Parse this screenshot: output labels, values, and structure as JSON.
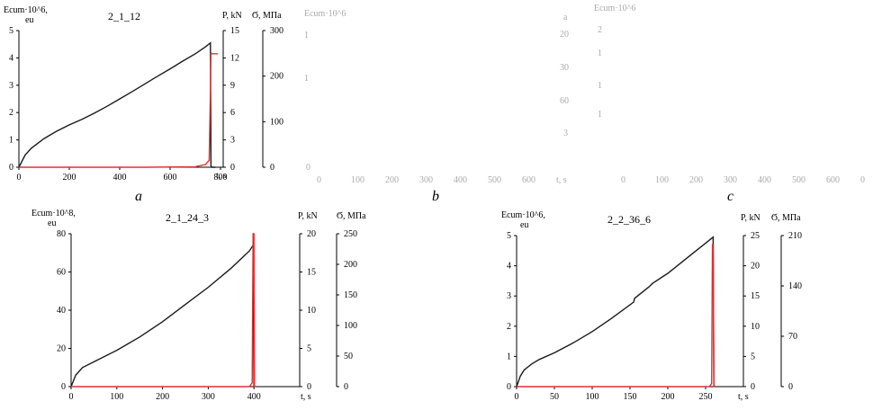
{
  "colors": {
    "strain": "#1a1a1a",
    "load": "#e03030",
    "axis": "#000000",
    "faint": "#aaaaaa"
  },
  "panel_letters": {
    "a": "a",
    "b": "b",
    "c": "c"
  },
  "chart_data": [
    {
      "id": "a",
      "type": "line",
      "title": "2_1_12",
      "ylabel_left": [
        "Ecum·10^6,",
        "eu"
      ],
      "ylabel_right1": "P, kN",
      "ylabel_right2": "Ϭ, МПа",
      "xlabel": "t, s",
      "xlim": [
        0,
        800
      ],
      "ylim": [
        0,
        5
      ],
      "xticks": [
        "0",
        "200",
        "400",
        "600",
        "800"
      ],
      "xtick_values": [
        0,
        200,
        400,
        600,
        800
      ],
      "yticks_left": [
        "0",
        "1",
        "2",
        "3",
        "4",
        "5"
      ],
      "yticks_right1": [
        "0",
        "3",
        "6",
        "9",
        "12",
        "15"
      ],
      "yticks_right2": [
        "0",
        "100",
        "200",
        "300"
      ],
      "grid": false,
      "series": [
        {
          "values_x": [
            0,
            25,
            50,
            100,
            150,
            200,
            250,
            300,
            350,
            400,
            450,
            500,
            550,
            600,
            650,
            700,
            740,
            760,
            762,
            765,
            780
          ],
          "values_y": [
            0,
            0.45,
            0.7,
            1.05,
            1.32,
            1.55,
            1.75,
            1.98,
            2.23,
            2.5,
            2.77,
            3.05,
            3.33,
            3.6,
            3.88,
            4.15,
            4.4,
            4.55,
            0.05,
            0,
            0
          ]
        },
        {
          "values_x": [
            0,
            500,
            700,
            740,
            755,
            760,
            762,
            765,
            770,
            790
          ],
          "values_y": [
            0,
            0,
            0.02,
            0.1,
            0.25,
            2.8,
            4.2,
            4.15,
            4.15,
            4.15
          ]
        }
      ]
    },
    {
      "id": "d",
      "type": "line",
      "title": "2_1_24_3",
      "ylabel_left": [
        "Ecum·10^8,",
        "eu"
      ],
      "ylabel_right1": "P, kN",
      "ylabel_right2": "Ϭ, МПа",
      "xlabel": "t, s",
      "xlim": [
        0,
        500
      ],
      "ylim": [
        0,
        80
      ],
      "xticks": [
        "0",
        "100",
        "200",
        "300",
        "400"
      ],
      "xtick_values": [
        0,
        100,
        200,
        300,
        400
      ],
      "yticks_left": [
        "0",
        "20",
        "40",
        "60",
        "80"
      ],
      "yticks_right1": [
        "0",
        "5",
        "10",
        "15",
        "20"
      ],
      "yticks_right2": [
        "0",
        "50",
        "100",
        "150",
        "200",
        "250"
      ],
      "grid": false,
      "series": [
        {
          "values_x": [
            0,
            10,
            25,
            50,
            100,
            150,
            200,
            250,
            300,
            350,
            390,
            398,
            400
          ],
          "values_y": [
            0,
            6,
            10,
            13,
            19,
            26,
            34,
            43,
            52,
            62,
            71,
            74,
            0
          ]
        },
        {
          "values_x": [
            0,
            390,
            396,
            398,
            400,
            401,
            403
          ],
          "values_y": [
            0,
            0,
            2,
            80,
            80,
            0,
            0
          ]
        }
      ]
    },
    {
      "id": "e",
      "type": "line",
      "title": "2_2_36_6",
      "ylabel_left": [
        "Ecum·10^6,",
        "eu"
      ],
      "ylabel_right1": "P, kN",
      "ylabel_right2": "Ϭ, МПа",
      "xlabel": "t, s",
      "xlim": [
        0,
        300
      ],
      "ylim": [
        0,
        5
      ],
      "xticks": [
        "0",
        "50",
        "100",
        "150",
        "200",
        "250"
      ],
      "xtick_values": [
        0,
        50,
        100,
        150,
        200,
        250
      ],
      "yticks_left": [
        "0",
        "1",
        "2",
        "3",
        "4",
        "5"
      ],
      "yticks_right1": [
        "0",
        "5",
        "10",
        "15",
        "20",
        "25"
      ],
      "yticks_right2": [
        "0",
        "70",
        "140",
        "210"
      ],
      "grid": false,
      "series": [
        {
          "values_x": [
            0,
            5,
            10,
            20,
            30,
            50,
            75,
            100,
            125,
            155,
            156,
            175,
            180,
            200,
            225,
            250,
            260,
            261,
            262
          ],
          "values_y": [
            0,
            0.35,
            0.55,
            0.75,
            0.9,
            1.12,
            1.45,
            1.82,
            2.25,
            2.8,
            2.92,
            3.3,
            3.42,
            3.75,
            4.25,
            4.75,
            4.95,
            0.05,
            0
          ]
        },
        {
          "values_x": [
            0,
            255,
            258,
            259,
            260,
            261,
            263
          ],
          "values_y": [
            0,
            0,
            0.1,
            4.7,
            4.7,
            0,
            0
          ]
        }
      ]
    }
  ],
  "panel_b": {
    "lefttext": [
      "Ecum·10^6",
      "1",
      "1",
      "0"
    ],
    "righttext": [
      "a",
      "20",
      "30",
      "60",
      "3"
    ],
    "xticks": [
      "0",
      "100",
      "200",
      "300",
      "400",
      "500",
      "600",
      "t, s"
    ]
  },
  "panel_c": {
    "lefttext": [
      "Ecum·10^6",
      "2",
      "1",
      "1",
      "1"
    ],
    "xticks": [
      "0",
      "100",
      "200",
      "300",
      "400",
      "500",
      "600",
      "0"
    ]
  }
}
